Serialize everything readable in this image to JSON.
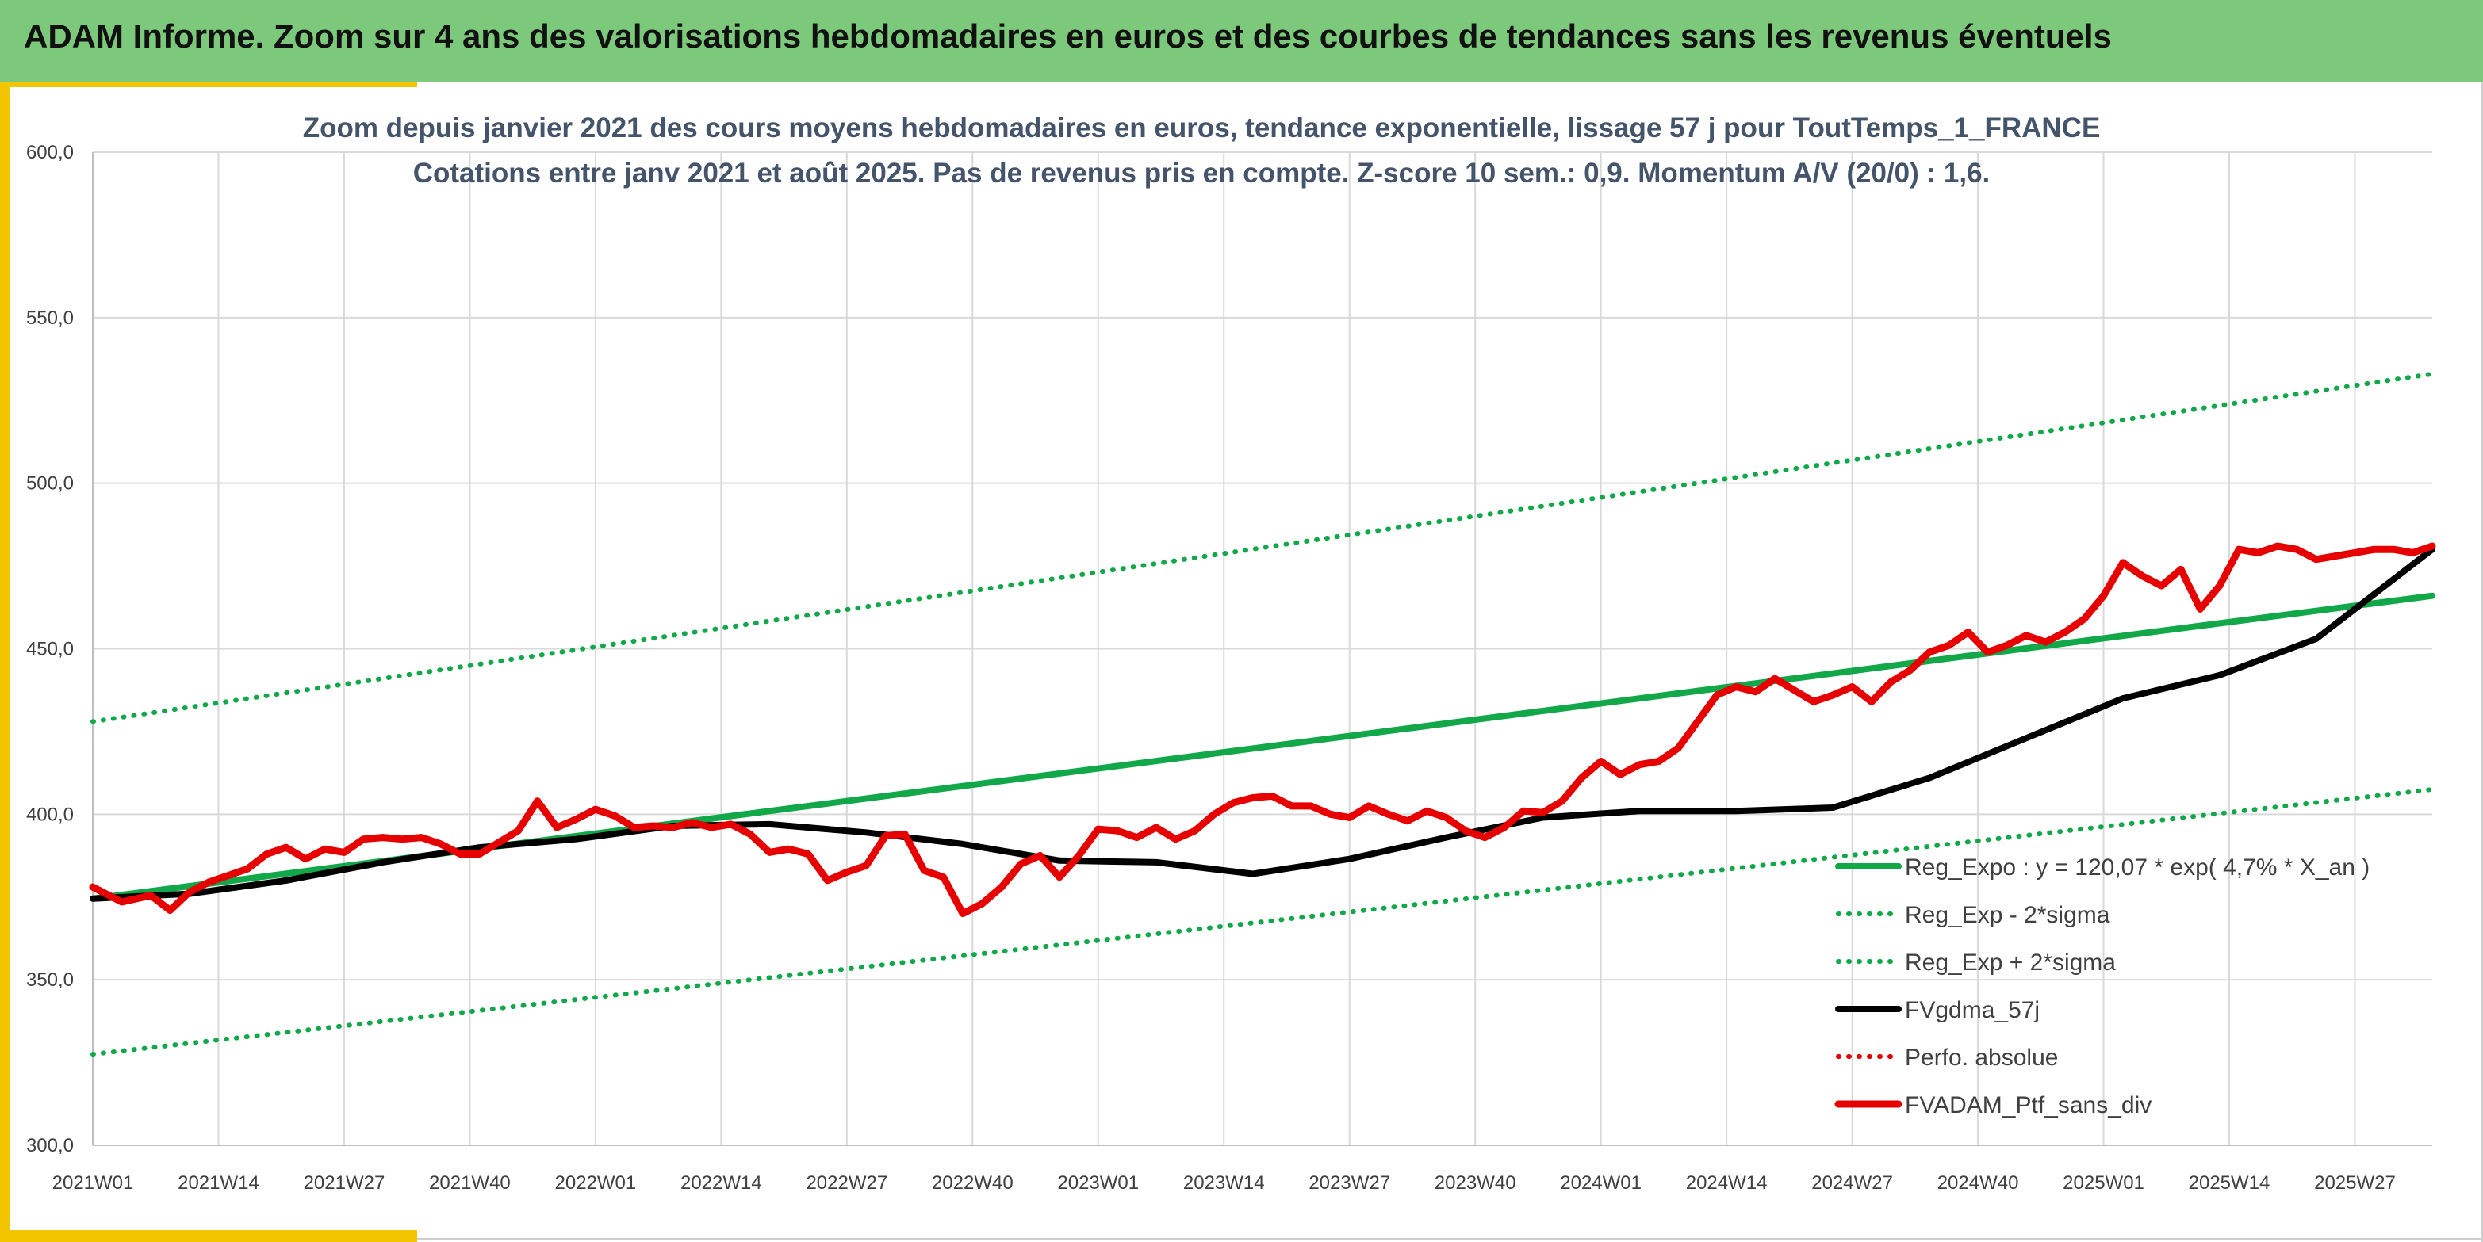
{
  "banner": {
    "title": "ADAM Informe. Zoom sur 4 ans des valorisations hebdomadaires en euros et des courbes de tendances sans les revenus éventuels"
  },
  "colors": {
    "banner_bg": "#7dc97b",
    "accent": "#f2c500",
    "regression": "#12a84a",
    "bands": "#12a84a",
    "smoothed": "#000000",
    "perf_absolue": "#e00000",
    "portfolio": "#e60000",
    "title_text": "#44546a"
  },
  "chart_data": {
    "type": "line",
    "title": "Zoom depuis janvier 2021 des cours moyens hebdomadaires en euros, tendance exponentielle, lissage 57 j pour ToutTemps_1_FRANCE",
    "subtitle": "Cotations entre janv 2021 et août 2025. Pas de revenus pris en compte. Z-score 10 sem.: 0,9. Momentum A/V (20/0) : 1,6.",
    "xlabel": "",
    "ylabel": "",
    "ylim": [
      300,
      600
    ],
    "yticks": [
      "300,0",
      "350,0",
      "400,0",
      "450,0",
      "500,0",
      "550,0",
      "600,0"
    ],
    "x_tick_labels": [
      "2021W01",
      "2021W14",
      "2021W27",
      "2021W40",
      "2022W01",
      "2022W14",
      "2022W27",
      "2022W40",
      "2023W01",
      "2023W14",
      "2023W27",
      "2023W40",
      "2024W01",
      "2024W14",
      "2024W27",
      "2024W40",
      "2025W01",
      "2025W14",
      "2025W27"
    ],
    "week_count": 243,
    "grid": true,
    "legend_position": "bottom-right",
    "series": [
      {
        "name": "Reg_Expo : y = 120,07 * exp( 4,7% *  X_an )",
        "style": "solid",
        "color": "#12a84a",
        "x": [
          0,
          242
        ],
        "y": [
          374.5,
          466.0
        ]
      },
      {
        "name": "Reg_Exp - 2*sigma",
        "style": "dotted",
        "color": "#12a84a",
        "x": [
          0,
          242
        ],
        "y": [
          327.5,
          407.5
        ]
      },
      {
        "name": "Reg_Exp + 2*sigma",
        "style": "dotted",
        "color": "#12a84a",
        "x": [
          0,
          242
        ],
        "y": [
          428.0,
          533.0
        ]
      },
      {
        "name": "FVgdma_57j",
        "style": "solid",
        "color": "#000000",
        "x": [
          0,
          10,
          20,
          30,
          40,
          50,
          60,
          70,
          80,
          90,
          100,
          110,
          120,
          130,
          140,
          150,
          160,
          170,
          180,
          190,
          200,
          210,
          220,
          230,
          242
        ],
        "y": [
          374.5,
          376,
          380,
          385.5,
          390,
          392.5,
          396.5,
          397,
          394.5,
          391,
          386,
          385.5,
          382,
          386.5,
          393,
          399,
          401,
          401,
          402,
          411,
          423,
          435,
          442,
          453,
          480
        ]
      },
      {
        "name": "Perfo. absolue",
        "style": "dotted",
        "color": "#e00000",
        "x": [],
        "y": []
      },
      {
        "name": "FVADAM_Ptf_sans_div",
        "style": "solid",
        "color": "#e60000",
        "x": [
          0,
          3,
          6,
          8,
          10,
          12,
          14,
          16,
          18,
          20,
          22,
          24,
          26,
          28,
          30,
          32,
          34,
          36,
          38,
          40,
          42,
          44,
          46,
          48,
          50,
          52,
          54,
          56,
          58,
          60,
          62,
          64,
          66,
          68,
          70,
          72,
          74,
          76,
          78,
          80,
          82,
          84,
          86,
          88,
          90,
          92,
          94,
          96,
          98,
          100,
          102,
          104,
          106,
          108,
          110,
          112,
          114,
          116,
          118,
          120,
          122,
          124,
          126,
          128,
          130,
          132,
          134,
          136,
          138,
          140,
          142,
          144,
          146,
          148,
          150,
          152,
          154,
          156,
          158,
          160,
          162,
          164,
          166,
          168,
          170,
          172,
          174,
          176,
          178,
          180,
          182,
          184,
          186,
          188,
          190,
          192,
          194,
          196,
          198,
          200,
          202,
          204,
          206,
          208,
          210,
          212,
          214,
          216,
          218,
          220,
          222,
          224,
          226,
          228,
          230,
          232,
          234,
          236,
          238,
          240,
          242
        ],
        "y": [
          378,
          373.5,
          375.5,
          371,
          376.5,
          379.5,
          381.5,
          383.5,
          388,
          390,
          386.5,
          389.5,
          388.5,
          392.5,
          393,
          392.5,
          393,
          391,
          388,
          388,
          391.5,
          395,
          404,
          396,
          398.5,
          401.5,
          399.5,
          396,
          396.5,
          396,
          397.5,
          396,
          397,
          394,
          388.5,
          389.5,
          388,
          380,
          382.5,
          384.5,
          393.5,
          394,
          383,
          381,
          370,
          373,
          378,
          385,
          387.5,
          381,
          387.5,
          395.5,
          395,
          393,
          396,
          392.5,
          395,
          400,
          403.5,
          405,
          405.5,
          402.5,
          402.5,
          400,
          399,
          402.5,
          400,
          398,
          401,
          399,
          395,
          393,
          396,
          401,
          400.5,
          404,
          411,
          416,
          412,
          415,
          416,
          420,
          428,
          436,
          438.5,
          437,
          441,
          437.5,
          434,
          436,
          438.5,
          434,
          440,
          443.5,
          449,
          451,
          455,
          449,
          451,
          454,
          452,
          455,
          459,
          466,
          476,
          472,
          469,
          474,
          462,
          469,
          480,
          479,
          481,
          480,
          477,
          478,
          479,
          480,
          480,
          479,
          481
        ]
      }
    ]
  }
}
